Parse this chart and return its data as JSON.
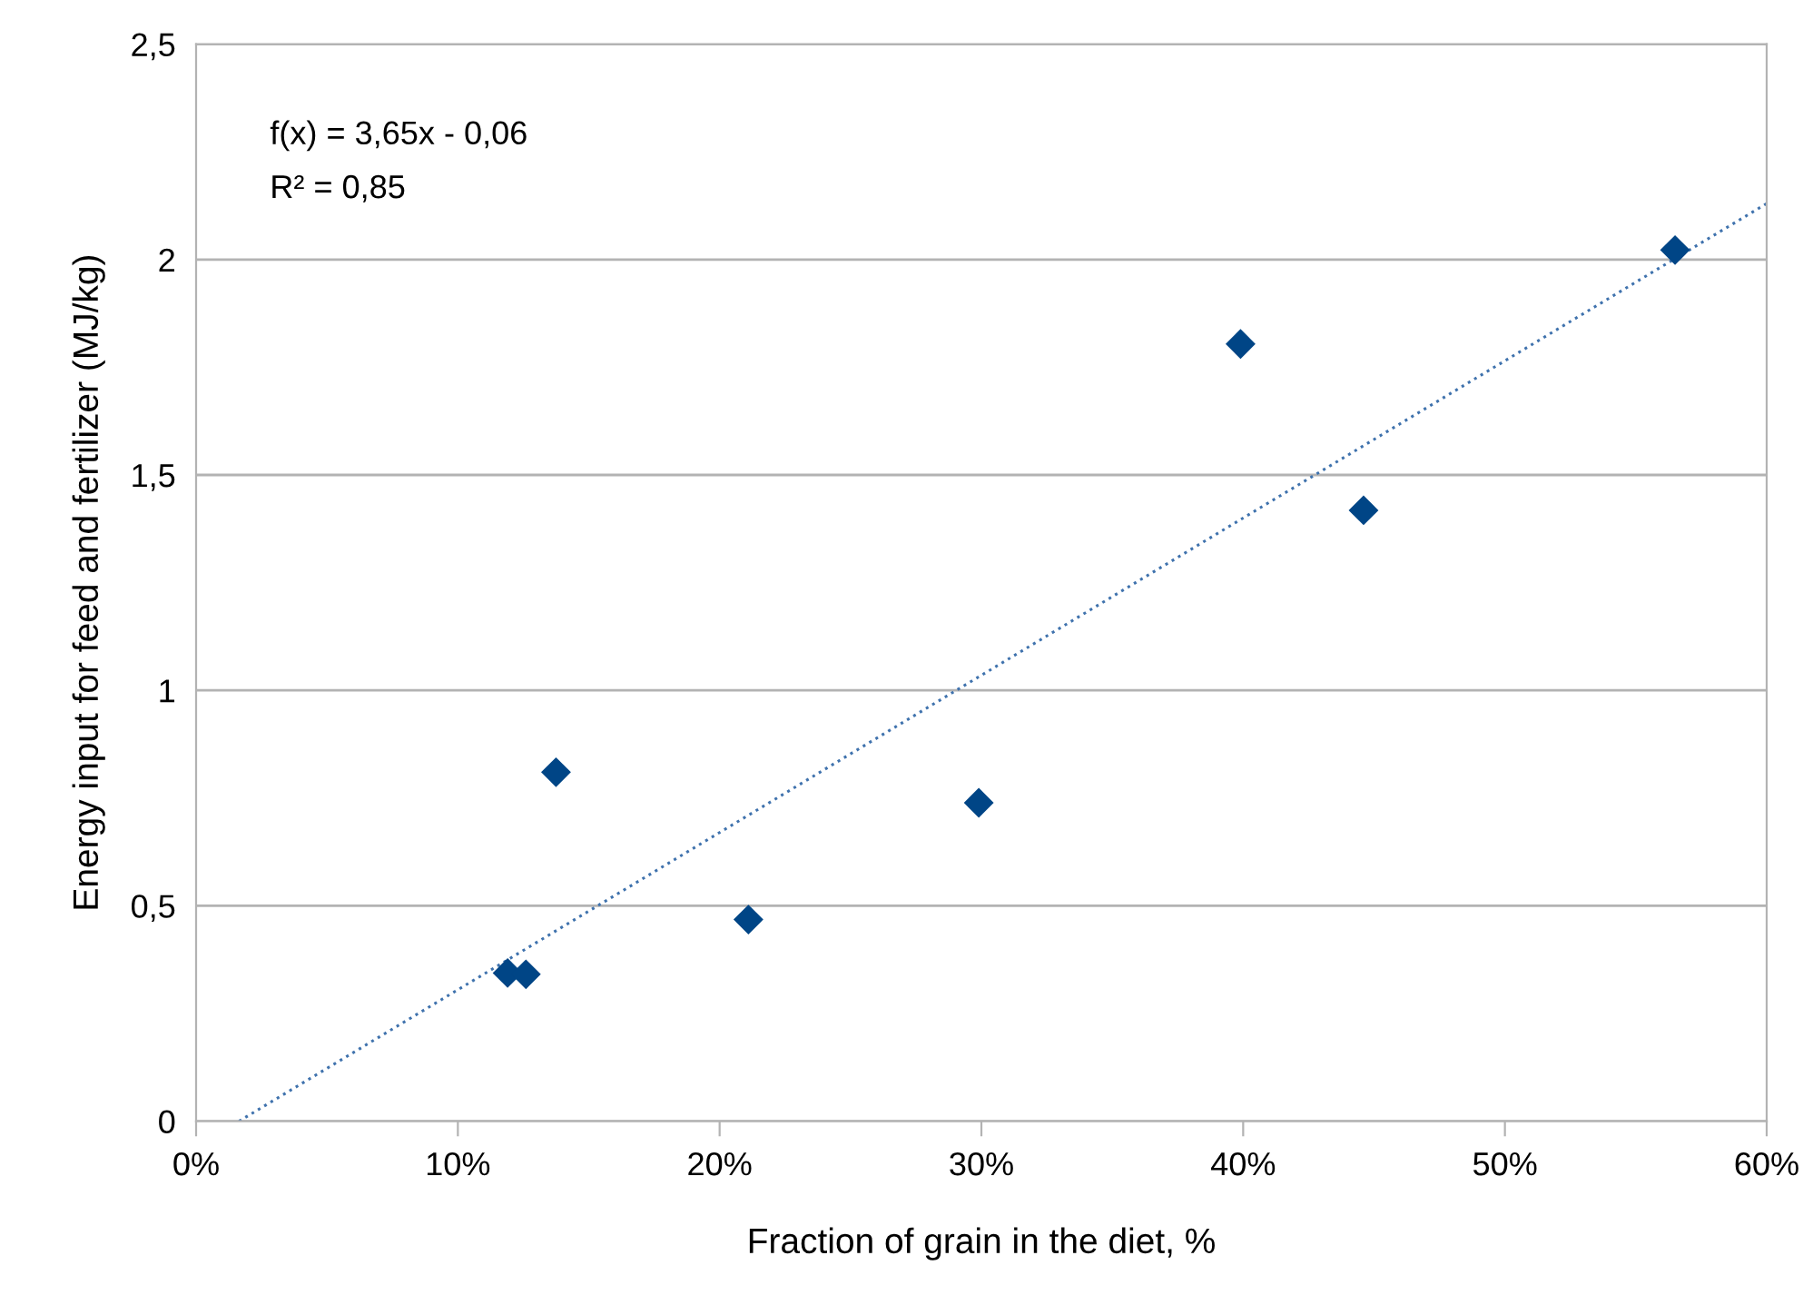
{
  "chart_data": {
    "type": "scatter",
    "xlabel": "Fraction of grain in the diet, %",
    "ylabel": "Energy input for feed and fertilizer (MJ/kg)",
    "annotations": [
      "f(x) = 3,65x - 0,06",
      "R² = 0,85"
    ],
    "series": [
      {
        "color": "#004586",
        "marker": "diamond",
        "x": [
          0.119,
          0.126,
          0.1375,
          0.211,
          0.299,
          0.399,
          0.446,
          0.565
        ],
        "values": [
          0.344,
          0.341,
          0.81,
          0.468,
          0.739,
          1.804,
          1.418,
          2.022
        ]
      },
      {
        "type": "line",
        "color": "#3f72ad",
        "line_style": "dotted",
        "marker": "none",
        "x": [
          0.0164,
          0.6
        ],
        "values": [
          0,
          2.13
        ]
      }
    ],
    "xlim": [
      0,
      0.6
    ],
    "xticks": [
      {
        "value": 0,
        "label": "0%"
      },
      {
        "value": 0.1,
        "label": "10%"
      },
      {
        "value": 0.2,
        "label": "20%"
      },
      {
        "value": 0.3,
        "label": "30%"
      },
      {
        "value": 0.4,
        "label": "40%"
      },
      {
        "value": 0.5,
        "label": "50%"
      },
      {
        "value": 0.6,
        "label": "60%"
      }
    ],
    "ylim": [
      0,
      2.5
    ],
    "yticks": [
      0,
      {
        "value": 0.5,
        "label": "0,5"
      },
      1,
      {
        "value": 1.5,
        "label": "1,5"
      },
      2,
      {
        "value": 2.5,
        "label": "2,5"
      }
    ],
    "grid": "y"
  }
}
